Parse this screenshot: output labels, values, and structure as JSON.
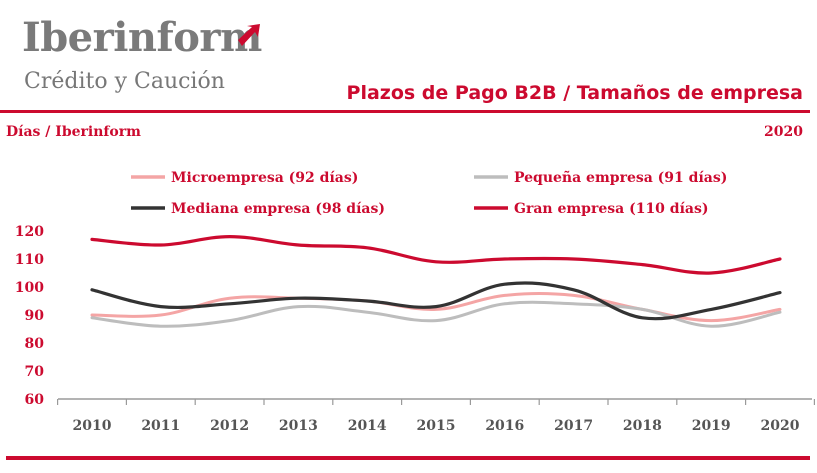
{
  "header": {
    "logo_name": "Iberinform",
    "logo_tagline": "Crédito y Caución",
    "title": "Plazos de Pago B2B / Tamaños de empresa",
    "subtitle": "Días / Iberinform",
    "year": "2020"
  },
  "colors": {
    "brand": "#cc0a2f",
    "logo_gray": "#7a7a7a"
  },
  "chart_data": {
    "type": "line",
    "categories": [
      "2010",
      "2011",
      "2012",
      "2013",
      "2014",
      "2015",
      "2016",
      "2017",
      "2018",
      "2019",
      "2020"
    ],
    "ylim": [
      60,
      120
    ],
    "yticks": [
      60,
      70,
      80,
      90,
      100,
      110,
      120
    ],
    "grid": false,
    "legend_position": "top",
    "series": [
      {
        "name": "Microempresa (92 días)",
        "color": "#f4a5a5",
        "values": [
          90,
          90,
          96,
          96,
          95,
          92,
          97,
          97,
          92,
          88,
          92
        ]
      },
      {
        "name": "Pequeña empresa (91 días)",
        "color": "#bdbdbd",
        "values": [
          89,
          86,
          88,
          93,
          91,
          88,
          94,
          94,
          92,
          86,
          91
        ]
      },
      {
        "name": "Mediana empresa (98 días)",
        "color": "#333333",
        "values": [
          99,
          93,
          94,
          96,
          95,
          93,
          101,
          99,
          89,
          92,
          98
        ]
      },
      {
        "name": "Gran empresa (110 días)",
        "color": "#cc0a2f",
        "values": [
          117,
          115,
          118,
          115,
          114,
          109,
          110,
          110,
          108,
          105,
          110
        ]
      }
    ]
  }
}
